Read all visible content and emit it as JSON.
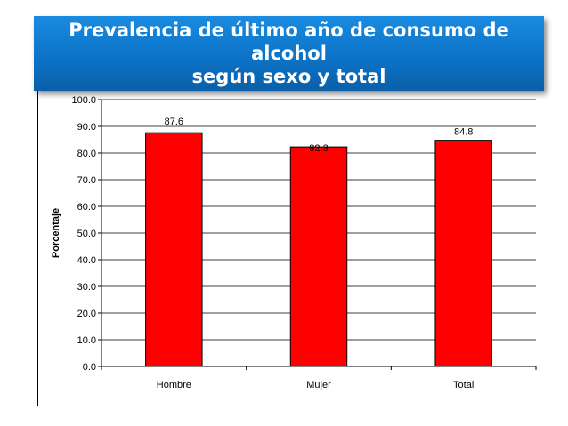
{
  "title": "Prevalencia de último año de consumo de alcohol\nsegún sexo y total",
  "colors": {
    "banner": "#0c74c8",
    "bar": "#ff0000",
    "bar_stroke": "#000000"
  },
  "chart_data": {
    "type": "bar",
    "categories": [
      "Hombre",
      "Mujer",
      "Total"
    ],
    "values": [
      87.6,
      82.3,
      84.8
    ],
    "data_labels": [
      "87.6",
      "82.3",
      "84.8"
    ],
    "ylabel": "Porcentaje",
    "xlabel": "",
    "ylim": [
      0,
      100
    ],
    "yticks": [
      "0.0",
      "10.0",
      "20.0",
      "30.0",
      "40.0",
      "50.0",
      "60.0",
      "70.0",
      "80.0",
      "90.0",
      "100.0"
    ],
    "grid": "horizontal",
    "legend": "none"
  }
}
